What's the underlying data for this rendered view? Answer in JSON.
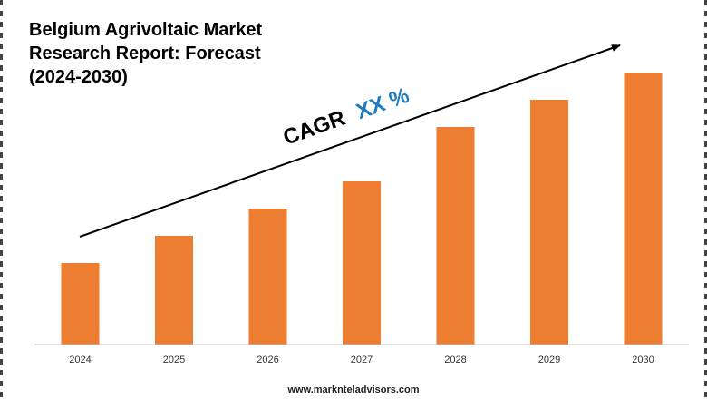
{
  "title_lines": [
    "Belgium Agrivoltaic Market",
    "Research Report: Forecast",
    "(2024-2030)"
  ],
  "cagr": {
    "prefix": "CAGR",
    "value": "XX %",
    "prefix_color": "#000000",
    "value_color": "#1f7bc1"
  },
  "footer": "www.marknteladvisors.com",
  "colors": {
    "bar": "#ed7d31",
    "axis": "#bfbfbf",
    "arrow": "#000000"
  },
  "chart_data": {
    "type": "bar",
    "title": "Belgium Agrivoltaic Market Research Report: Forecast (2024-2030)",
    "categories": [
      "2024",
      "2025",
      "2026",
      "2027",
      "2028",
      "2029",
      "2030"
    ],
    "values": [
      30,
      40,
      50,
      60,
      80,
      90,
      100
    ],
    "ylim": [
      0,
      100
    ],
    "y_axis_visible": false,
    "grid": false,
    "legend": "none",
    "annotation": "CAGR XX %"
  }
}
